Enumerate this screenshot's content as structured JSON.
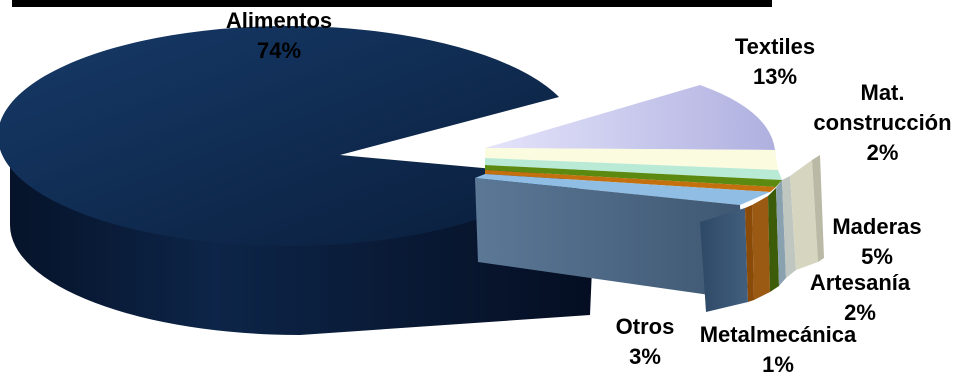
{
  "chart_data": {
    "type": "pie",
    "style": "3d-exploded",
    "legend": "none",
    "categories": [
      "Alimentos",
      "Textiles",
      "Mat. construcción",
      "Maderas",
      "Artesanía",
      "Metalmecánica",
      "Otros"
    ],
    "values": [
      74,
      13,
      2,
      5,
      2,
      1,
      3
    ],
    "value_labels": [
      "74%",
      "13%",
      "2%",
      "5%",
      "2%",
      "1%",
      "3%"
    ],
    "colors": [
      "#0f2a50",
      "#c5c5ee",
      "#fbfbe0",
      "#b9ead6",
      "#5c8a10",
      "#c4700e",
      "#8fbde4"
    ]
  }
}
